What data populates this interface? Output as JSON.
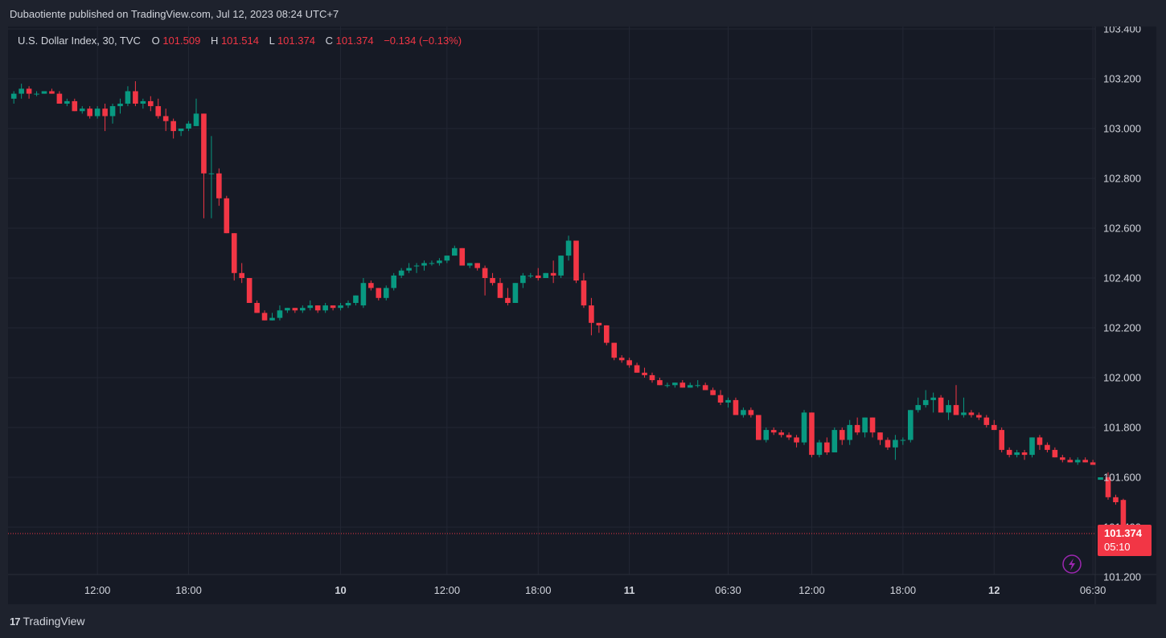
{
  "header": {
    "publisher": "Dubaotiente published on TradingView.com, Jul 12, 2023 08:24 UTC+7"
  },
  "legend": {
    "symbol": "U.S. Dollar Index, 30, TVC",
    "o_label": "O",
    "o_value": "101.509",
    "h_label": "H",
    "h_value": "101.514",
    "l_label": "L",
    "l_value": "101.374",
    "c_label": "C",
    "c_value": "101.374",
    "change": "−0.134 (−0.13%)"
  },
  "price_tag": {
    "price": "101.374",
    "countdown": "05:10"
  },
  "footer": {
    "brand": "TradingView",
    "logo": "17"
  },
  "colors": {
    "up": "#089981",
    "down": "#f23645",
    "grid": "#232734",
    "axis_text": "#d1d4dc",
    "background": "#161a25",
    "lightning": "#9c27b0"
  },
  "chart_data": {
    "type": "candlestick",
    "title": "U.S. Dollar Index, 30, TVC",
    "ylim": [
      101.2,
      103.4
    ],
    "y_ticks": [
      "103.400",
      "103.200",
      "103.000",
      "102.800",
      "102.600",
      "102.400",
      "102.200",
      "102.000",
      "101.800",
      "101.600",
      "101.400",
      "101.200"
    ],
    "y_tick_values": [
      103.4,
      103.2,
      103.0,
      102.8,
      102.6,
      102.4,
      102.2,
      102.0,
      101.8,
      101.6,
      101.4,
      101.2
    ],
    "x_ticks": [
      {
        "label": "12:00",
        "index": 11,
        "bold": false
      },
      {
        "label": "18:00",
        "index": 23,
        "bold": false
      },
      {
        "label": "10",
        "index": 43,
        "bold": true
      },
      {
        "label": "12:00",
        "index": 57,
        "bold": false
      },
      {
        "label": "18:00",
        "index": 69,
        "bold": false
      },
      {
        "label": "11",
        "index": 81,
        "bold": true
      },
      {
        "label": "06:30",
        "index": 94,
        "bold": false
      },
      {
        "label": "12:00",
        "index": 105,
        "bold": false
      },
      {
        "label": "18:00",
        "index": 117,
        "bold": false
      },
      {
        "label": "12",
        "index": 129,
        "bold": true
      },
      {
        "label": "06:30",
        "index": 142,
        "bold": false
      }
    ],
    "last_price": 101.374,
    "candles": [
      [
        103.12,
        103.15,
        103.1,
        103.14
      ],
      [
        103.14,
        103.18,
        103.12,
        103.16
      ],
      [
        103.16,
        103.17,
        103.12,
        103.14
      ],
      [
        103.14,
        103.15,
        103.13,
        103.14
      ],
      [
        103.14,
        103.15,
        103.14,
        103.15
      ],
      [
        103.15,
        103.16,
        103.14,
        103.14
      ],
      [
        103.14,
        103.15,
        103.1,
        103.1
      ],
      [
        103.1,
        103.12,
        103.09,
        103.11
      ],
      [
        103.11,
        103.12,
        103.07,
        103.07
      ],
      [
        103.07,
        103.09,
        103.06,
        103.08
      ],
      [
        103.08,
        103.09,
        103.04,
        103.05
      ],
      [
        103.05,
        103.09,
        103.04,
        103.08
      ],
      [
        103.08,
        103.1,
        102.99,
        103.05
      ],
      [
        103.05,
        103.1,
        103.02,
        103.09
      ],
      [
        103.09,
        103.12,
        103.06,
        103.1
      ],
      [
        103.1,
        103.17,
        103.09,
        103.15
      ],
      [
        103.15,
        103.19,
        103.09,
        103.1
      ],
      [
        103.1,
        103.12,
        103.08,
        103.11
      ],
      [
        103.11,
        103.13,
        103.07,
        103.09
      ],
      [
        103.09,
        103.12,
        103.04,
        103.05
      ],
      [
        103.05,
        103.08,
        102.99,
        103.03
      ],
      [
        103.03,
        103.04,
        102.96,
        102.99
      ],
      [
        102.99,
        103.0,
        102.97,
        103.0
      ],
      [
        103.0,
        103.03,
        102.99,
        103.02
      ],
      [
        103.01,
        103.12,
        103.01,
        103.06
      ],
      [
        103.06,
        103.06,
        102.64,
        102.82
      ],
      [
        102.82,
        102.97,
        102.64,
        102.82
      ],
      [
        102.82,
        102.84,
        102.69,
        102.72
      ],
      [
        102.72,
        102.73,
        102.58,
        102.58
      ],
      [
        102.58,
        102.58,
        102.39,
        102.42
      ],
      [
        102.42,
        102.46,
        102.38,
        102.4
      ],
      [
        102.4,
        102.4,
        102.3,
        102.3
      ],
      [
        102.3,
        102.31,
        102.26,
        102.26
      ],
      [
        102.26,
        102.27,
        102.23,
        102.23
      ],
      [
        102.23,
        102.26,
        102.23,
        102.24
      ],
      [
        102.24,
        102.29,
        102.23,
        102.27
      ],
      [
        102.27,
        102.28,
        102.26,
        102.28
      ],
      [
        102.28,
        102.28,
        102.26,
        102.27
      ],
      [
        102.27,
        102.29,
        102.26,
        102.28
      ],
      [
        102.28,
        102.31,
        102.27,
        102.29
      ],
      [
        102.29,
        102.29,
        102.26,
        102.27
      ],
      [
        102.27,
        102.3,
        102.26,
        102.29
      ],
      [
        102.29,
        102.29,
        102.27,
        102.28
      ],
      [
        102.28,
        102.3,
        102.27,
        102.29
      ],
      [
        102.29,
        102.31,
        102.28,
        102.3
      ],
      [
        102.3,
        102.33,
        102.29,
        102.33
      ],
      [
        102.29,
        102.4,
        102.28,
        102.38
      ],
      [
        102.38,
        102.39,
        102.35,
        102.36
      ],
      [
        102.36,
        102.36,
        102.31,
        102.32
      ],
      [
        102.32,
        102.37,
        102.31,
        102.36
      ],
      [
        102.36,
        102.42,
        102.35,
        102.41
      ],
      [
        102.41,
        102.44,
        102.4,
        102.43
      ],
      [
        102.43,
        102.46,
        102.42,
        102.44
      ],
      [
        102.45,
        102.46,
        102.42,
        102.45
      ],
      [
        102.45,
        102.47,
        102.43,
        102.46
      ],
      [
        102.46,
        102.47,
        102.45,
        102.46
      ],
      [
        102.46,
        102.48,
        102.45,
        102.47
      ],
      [
        102.47,
        102.49,
        102.46,
        102.49
      ],
      [
        102.49,
        102.53,
        102.49,
        102.52
      ],
      [
        102.52,
        102.52,
        102.45,
        102.45
      ],
      [
        102.45,
        102.46,
        102.44,
        102.46
      ],
      [
        102.46,
        102.46,
        102.43,
        102.44
      ],
      [
        102.44,
        102.45,
        102.33,
        102.4
      ],
      [
        102.4,
        102.42,
        102.37,
        102.38
      ],
      [
        102.38,
        102.4,
        102.32,
        102.32
      ],
      [
        102.32,
        102.36,
        102.29,
        102.3
      ],
      [
        102.3,
        102.38,
        102.3,
        102.38
      ],
      [
        102.38,
        102.42,
        102.36,
        102.41
      ],
      [
        102.41,
        102.42,
        102.4,
        102.41
      ],
      [
        102.41,
        102.44,
        102.39,
        102.4
      ],
      [
        102.4,
        102.42,
        102.4,
        102.42
      ],
      [
        102.42,
        102.47,
        102.38,
        102.41
      ],
      [
        102.41,
        102.49,
        102.4,
        102.49
      ],
      [
        102.49,
        102.57,
        102.47,
        102.55
      ],
      [
        102.55,
        102.55,
        102.38,
        102.39
      ],
      [
        102.39,
        102.42,
        102.28,
        102.29
      ],
      [
        102.29,
        102.32,
        102.17,
        102.22
      ],
      [
        102.22,
        102.22,
        102.18,
        102.21
      ],
      [
        102.21,
        102.21,
        102.13,
        102.14
      ],
      [
        102.14,
        102.14,
        102.07,
        102.08
      ],
      [
        102.08,
        102.09,
        102.06,
        102.07
      ],
      [
        102.07,
        102.08,
        102.04,
        102.05
      ],
      [
        102.05,
        102.06,
        102.02,
        102.02
      ],
      [
        102.02,
        102.04,
        102.0,
        102.01
      ],
      [
        102.01,
        102.02,
        101.98,
        101.99
      ],
      [
        101.99,
        102.0,
        101.97,
        101.97
      ],
      [
        101.97,
        101.98,
        101.96,
        101.97
      ],
      [
        101.97,
        101.98,
        101.96,
        101.98
      ],
      [
        101.98,
        101.99,
        101.96,
        101.96
      ],
      [
        101.96,
        101.98,
        101.96,
        101.97
      ],
      [
        101.97,
        101.99,
        101.96,
        101.97
      ],
      [
        101.97,
        101.98,
        101.95,
        101.95
      ],
      [
        101.95,
        101.96,
        101.93,
        101.93
      ],
      [
        101.93,
        101.95,
        101.89,
        101.9
      ],
      [
        101.9,
        101.92,
        101.88,
        101.91
      ],
      [
        101.91,
        101.92,
        101.85,
        101.85
      ],
      [
        101.85,
        101.88,
        101.84,
        101.87
      ],
      [
        101.87,
        101.88,
        101.84,
        101.85
      ],
      [
        101.85,
        101.85,
        101.75,
        101.75
      ],
      [
        101.75,
        101.8,
        101.74,
        101.79
      ],
      [
        101.79,
        101.8,
        101.77,
        101.78
      ],
      [
        101.78,
        101.79,
        101.76,
        101.77
      ],
      [
        101.77,
        101.78,
        101.75,
        101.76
      ],
      [
        101.76,
        101.77,
        101.72,
        101.74
      ],
      [
        101.74,
        101.87,
        101.73,
        101.86
      ],
      [
        101.86,
        101.86,
        101.68,
        101.69
      ],
      [
        101.69,
        101.75,
        101.68,
        101.74
      ],
      [
        101.74,
        101.76,
        101.69,
        101.7
      ],
      [
        101.7,
        101.8,
        101.7,
        101.79
      ],
      [
        101.79,
        101.8,
        101.73,
        101.75
      ],
      [
        101.75,
        101.83,
        101.73,
        101.81
      ],
      [
        101.81,
        101.84,
        101.77,
        101.78
      ],
      [
        101.78,
        101.84,
        101.76,
        101.84
      ],
      [
        101.84,
        101.84,
        101.76,
        101.78
      ],
      [
        101.78,
        101.78,
        101.73,
        101.75
      ],
      [
        101.75,
        101.76,
        101.71,
        101.72
      ],
      [
        101.72,
        101.77,
        101.67,
        101.75
      ],
      [
        101.75,
        101.76,
        101.73,
        101.75
      ],
      [
        101.75,
        101.87,
        101.74,
        101.87
      ],
      [
        101.87,
        101.92,
        101.86,
        101.89
      ],
      [
        101.89,
        101.95,
        101.88,
        101.91
      ],
      [
        101.91,
        101.94,
        101.86,
        101.92
      ],
      [
        101.92,
        101.93,
        101.86,
        101.86
      ],
      [
        101.86,
        101.91,
        101.83,
        101.89
      ],
      [
        101.89,
        101.97,
        101.85,
        101.85
      ],
      [
        101.85,
        101.92,
        101.84,
        101.86
      ],
      [
        101.86,
        101.87,
        101.84,
        101.85
      ],
      [
        101.85,
        101.86,
        101.83,
        101.84
      ],
      [
        101.84,
        101.85,
        101.8,
        101.81
      ],
      [
        101.81,
        101.83,
        101.79,
        101.79
      ],
      [
        101.79,
        101.8,
        101.7,
        101.71
      ],
      [
        101.71,
        101.72,
        101.68,
        101.69
      ],
      [
        101.69,
        101.71,
        101.68,
        101.7
      ],
      [
        101.7,
        101.71,
        101.67,
        101.69
      ],
      [
        101.69,
        101.76,
        101.68,
        101.76
      ],
      [
        101.76,
        101.77,
        101.71,
        101.73
      ],
      [
        101.73,
        101.74,
        101.7,
        101.71
      ],
      [
        101.71,
        101.72,
        101.68,
        101.68
      ],
      [
        101.68,
        101.69,
        101.66,
        101.67
      ],
      [
        101.67,
        101.68,
        101.66,
        101.66
      ],
      [
        101.66,
        101.68,
        101.65,
        101.67
      ],
      [
        101.67,
        101.68,
        101.66,
        101.66
      ],
      [
        101.66,
        101.67,
        101.65,
        101.65
      ],
      [
        101.59,
        101.6,
        101.59,
        101.6
      ],
      [
        101.6,
        101.62,
        101.51,
        101.52
      ],
      [
        101.52,
        101.53,
        101.49,
        101.5
      ],
      [
        101.509,
        101.514,
        101.374,
        101.374
      ]
    ]
  }
}
